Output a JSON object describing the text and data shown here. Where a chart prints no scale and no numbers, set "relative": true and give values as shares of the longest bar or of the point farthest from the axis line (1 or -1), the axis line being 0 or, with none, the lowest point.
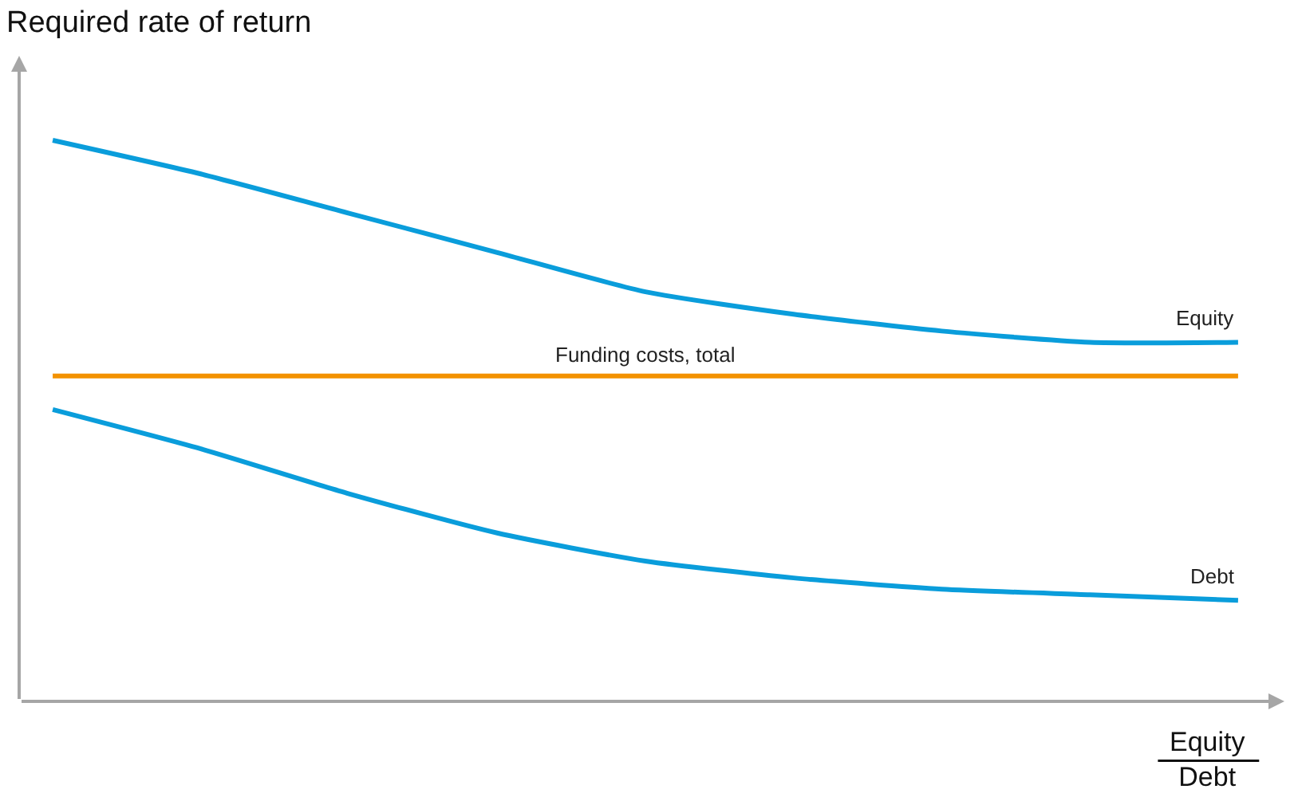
{
  "chart_data": {
    "type": "line",
    "relative": true,
    "ylabel": "Required rate of return",
    "xlabel": "Equity\nDebt",
    "categories": [
      null,
      null,
      null,
      null,
      null,
      null,
      null,
      null,
      null
    ],
    "legend": false,
    "marker": "none",
    "line_style": "solid",
    "tick_labels": false,
    "series": [
      {
        "name": "Equity",
        "color": "#0a9ddb",
        "values": [
          1.0,
          0.94,
          0.87,
          0.8,
          0.73,
          0.69,
          0.66,
          0.64,
          0.64
        ]
      },
      {
        "name": "Funding costs, total",
        "color": "#f39200",
        "values": [
          0.58,
          0.58,
          0.58,
          0.58,
          0.58,
          0.58,
          0.58,
          0.58,
          0.58
        ]
      },
      {
        "name": "Debt",
        "color": "#0a9ddb",
        "values": [
          0.52,
          0.45,
          0.37,
          0.3,
          0.25,
          0.22,
          0.2,
          0.19,
          0.18
        ]
      }
    ]
  }
}
